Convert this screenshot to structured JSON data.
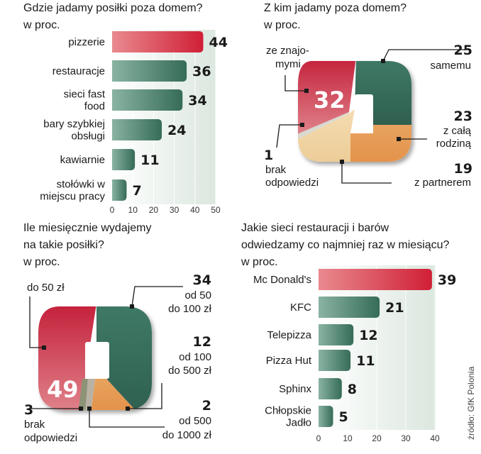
{
  "colors": {
    "red": "#d42a3c",
    "green": "#3f7a66",
    "orange": "#e9a35c",
    "beige": "#f2d7a8",
    "olive": "#8d9377",
    "gray": "#9a9a90"
  },
  "source": "źródło: GfK Polonia",
  "chart_data": [
    {
      "type": "bar",
      "id": "chart1",
      "title": "Gdzie jadamy posiłki poza domem?",
      "subtitle": "w proc.",
      "categories": [
        [
          "pizzerie"
        ],
        [
          "restauracje"
        ],
        [
          "sieci fast",
          "food"
        ],
        [
          "bary szybkiej",
          "obsługi"
        ],
        [
          "kawiarnie"
        ],
        [
          "stołówki w",
          "miejscu pracy"
        ]
      ],
      "values": [
        44,
        36,
        34,
        24,
        11,
        7
      ],
      "xlim": [
        0,
        50
      ],
      "ticks": [
        "0",
        "10",
        "20",
        "30",
        "40",
        "50"
      ]
    },
    {
      "type": "pie",
      "id": "chart2",
      "title": "Z kim jadamy poza domem?",
      "subtitle": "w proc.",
      "slices": [
        {
          "label": [
            "ze znajo-",
            "mymi"
          ],
          "value": 32
        },
        {
          "label": [
            "samemu"
          ],
          "value": 25
        },
        {
          "label": [
            "z całą",
            "rodziną"
          ],
          "value": 23
        },
        {
          "label": [
            "z partnerem"
          ],
          "value": 19
        },
        {
          "label": [
            "brak",
            "odpowiedzi"
          ],
          "value": 1
        }
      ],
      "center_value": "32"
    },
    {
      "type": "pie",
      "id": "chart3",
      "title": [
        "Ile miesięcznie wydajemy",
        "na takie posiłki?"
      ],
      "subtitle": "w proc.",
      "slices": [
        {
          "label": [
            "do 50 zł"
          ],
          "value": 49
        },
        {
          "label": [
            "od 50",
            "do 100 zł"
          ],
          "value": 34
        },
        {
          "label": [
            "od 100",
            "do 500 zł"
          ],
          "value": 12
        },
        {
          "label": [
            "od 500",
            "do 1000 zł"
          ],
          "value": 2
        },
        {
          "label": [
            "brak",
            "odpowiedzi"
          ],
          "value": 3
        }
      ],
      "center_value": "49"
    },
    {
      "type": "bar",
      "id": "chart4",
      "title": [
        "Jakie sieci restauracji i barów",
        "odwiedzamy co najmniej raz w miesiącu?"
      ],
      "subtitle": "w proc.",
      "categories": [
        [
          "Mc Donald's"
        ],
        [
          "KFC"
        ],
        [
          "Telepizza"
        ],
        [
          "Pizza Hut"
        ],
        [
          "Sphinx"
        ],
        [
          "Chłopskie",
          "Jadło"
        ]
      ],
      "values": [
        39,
        21,
        12,
        11,
        8,
        5
      ],
      "xlim": [
        0,
        40
      ],
      "ticks": [
        "0",
        "10",
        "20",
        "30",
        "40"
      ]
    }
  ]
}
